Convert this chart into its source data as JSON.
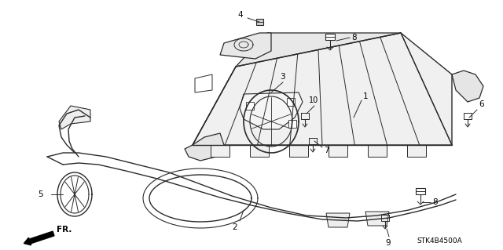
{
  "bg_color": "#ffffff",
  "line_color": "#2a2a2a",
  "diagram_code": "STK4B4500A",
  "arrow_label": "FR.",
  "figsize": [
    6.4,
    3.19
  ],
  "dpi": 100
}
